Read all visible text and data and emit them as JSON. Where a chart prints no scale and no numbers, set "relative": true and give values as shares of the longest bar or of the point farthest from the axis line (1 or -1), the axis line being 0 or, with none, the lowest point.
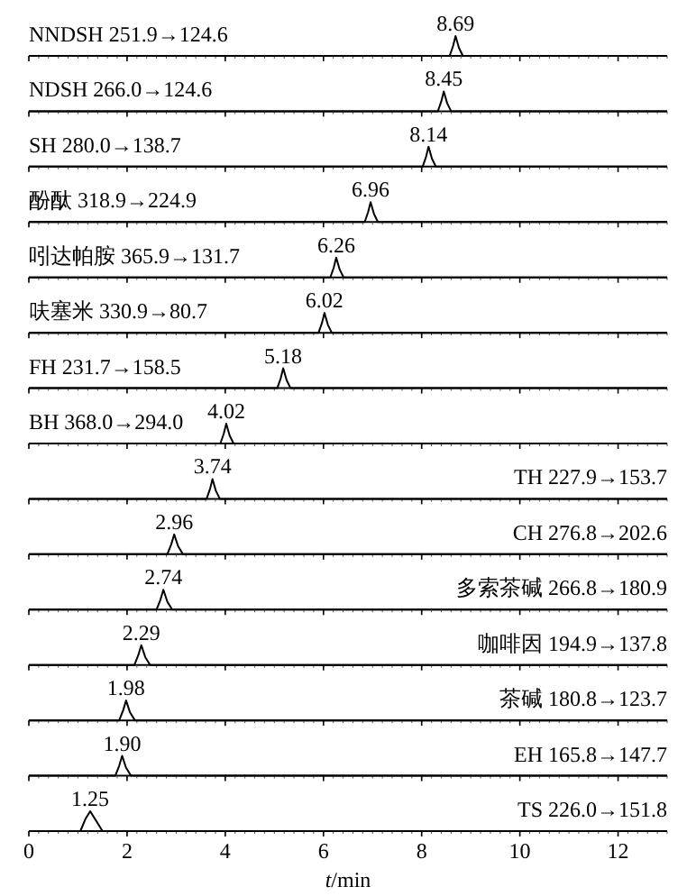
{
  "chart_data": [
    {
      "type": "line",
      "title": "NNDSH 251.9→124.6",
      "relative": true,
      "tick_labels": false,
      "xlim": [
        0,
        13
      ],
      "xticks": [
        {
          "value": 0,
          "label": null
        },
        {
          "value": 2,
          "label": null
        },
        {
          "value": 4,
          "label": null
        },
        {
          "value": 6,
          "label": null
        },
        {
          "value": 8,
          "label": null
        },
        {
          "value": 10,
          "label": null
        },
        {
          "value": 12,
          "label": null
        }
      ],
      "series": [
        {
          "color": "#000000",
          "x": [
            0,
            8.57,
            8.64,
            8.69,
            8.76,
            8.84,
            13
          ],
          "values": [
            0,
            0,
            0.5,
            1,
            0.4,
            0,
            0
          ]
        }
      ],
      "annotations": [
        {
          "text": "8.69",
          "x": 8.69,
          "y": 1
        }
      ]
    },
    {
      "type": "line",
      "title": "NDSH 266.0→124.6",
      "relative": true,
      "tick_labels": false,
      "xlim": [
        0,
        13
      ],
      "xticks": [
        {
          "value": 0,
          "label": null
        },
        {
          "value": 2,
          "label": null
        },
        {
          "value": 4,
          "label": null
        },
        {
          "value": 6,
          "label": null
        },
        {
          "value": 8,
          "label": null
        },
        {
          "value": 10,
          "label": null
        },
        {
          "value": 12,
          "label": null
        }
      ],
      "series": [
        {
          "color": "#000000",
          "x": [
            0,
            8.33,
            8.4,
            8.45,
            8.52,
            8.6,
            13
          ],
          "values": [
            0,
            0,
            0.5,
            1,
            0.4,
            0,
            0
          ]
        }
      ],
      "annotations": [
        {
          "text": "8.45",
          "x": 8.45,
          "y": 1
        }
      ]
    },
    {
      "type": "line",
      "title": "SH 280.0→138.7",
      "relative": true,
      "tick_labels": false,
      "xlim": [
        0,
        13
      ],
      "xticks": [
        {
          "value": 0,
          "label": null
        },
        {
          "value": 2,
          "label": null
        },
        {
          "value": 4,
          "label": null
        },
        {
          "value": 6,
          "label": null
        },
        {
          "value": 8,
          "label": null
        },
        {
          "value": 10,
          "label": null
        },
        {
          "value": 12,
          "label": null
        }
      ],
      "series": [
        {
          "color": "#000000",
          "x": [
            0,
            8.02,
            8.09,
            8.14,
            8.21,
            8.29,
            13
          ],
          "values": [
            0,
            0,
            0.5,
            1,
            0.4,
            0,
            0
          ]
        }
      ],
      "annotations": [
        {
          "text": "8.14",
          "x": 8.14,
          "y": 1
        }
      ]
    },
    {
      "type": "line",
      "title": "酚酞 318.9→224.9",
      "relative": true,
      "tick_labels": false,
      "xlim": [
        0,
        13
      ],
      "xticks": [
        {
          "value": 0,
          "label": null
        },
        {
          "value": 2,
          "label": null
        },
        {
          "value": 4,
          "label": null
        },
        {
          "value": 6,
          "label": null
        },
        {
          "value": 8,
          "label": null
        },
        {
          "value": 10,
          "label": null
        },
        {
          "value": 12,
          "label": null
        }
      ],
      "series": [
        {
          "color": "#000000",
          "x": [
            0,
            6.84,
            6.91,
            6.96,
            7.03,
            7.11,
            13
          ],
          "values": [
            0,
            0,
            0.5,
            1,
            0.4,
            0,
            0
          ]
        }
      ],
      "annotations": [
        {
          "text": "6.96",
          "x": 6.96,
          "y": 1
        }
      ]
    },
    {
      "type": "line",
      "title": "吲达帕胺 365.9→131.7",
      "relative": true,
      "tick_labels": false,
      "xlim": [
        0,
        13
      ],
      "xticks": [
        {
          "value": 0,
          "label": null
        },
        {
          "value": 2,
          "label": null
        },
        {
          "value": 4,
          "label": null
        },
        {
          "value": 6,
          "label": null
        },
        {
          "value": 8,
          "label": null
        },
        {
          "value": 10,
          "label": null
        },
        {
          "value": 12,
          "label": null
        }
      ],
      "series": [
        {
          "color": "#000000",
          "x": [
            0,
            6.14,
            6.21,
            6.26,
            6.33,
            6.41,
            13
          ],
          "values": [
            0,
            0,
            0.5,
            1,
            0.4,
            0,
            0
          ]
        }
      ],
      "annotations": [
        {
          "text": "6.26",
          "x": 6.26,
          "y": 1
        }
      ]
    },
    {
      "type": "line",
      "title": "呋塞米 330.9→80.7",
      "relative": true,
      "tick_labels": false,
      "xlim": [
        0,
        13
      ],
      "xticks": [
        {
          "value": 0,
          "label": null
        },
        {
          "value": 2,
          "label": null
        },
        {
          "value": 4,
          "label": null
        },
        {
          "value": 6,
          "label": null
        },
        {
          "value": 8,
          "label": null
        },
        {
          "value": 10,
          "label": null
        },
        {
          "value": 12,
          "label": null
        }
      ],
      "series": [
        {
          "color": "#000000",
          "x": [
            0,
            5.9,
            5.97,
            6.02,
            6.09,
            6.17,
            13
          ],
          "values": [
            0,
            0,
            0.5,
            1,
            0.4,
            0,
            0
          ]
        }
      ],
      "annotations": [
        {
          "text": "6.02",
          "x": 6.02,
          "y": 1
        }
      ]
    },
    {
      "type": "line",
      "title": "FH 231.7→158.5",
      "relative": true,
      "tick_labels": false,
      "xlim": [
        0,
        13
      ],
      "xticks": [
        {
          "value": 0,
          "label": null
        },
        {
          "value": 2,
          "label": null
        },
        {
          "value": 4,
          "label": null
        },
        {
          "value": 6,
          "label": null
        },
        {
          "value": 8,
          "label": null
        },
        {
          "value": 10,
          "label": null
        },
        {
          "value": 12,
          "label": null
        }
      ],
      "series": [
        {
          "color": "#000000",
          "x": [
            0,
            5.06,
            5.13,
            5.18,
            5.25,
            5.33,
            13
          ],
          "values": [
            0,
            0,
            0.5,
            1,
            0.4,
            0,
            0
          ]
        }
      ],
      "annotations": [
        {
          "text": "5.18",
          "x": 5.18,
          "y": 1
        }
      ]
    },
    {
      "type": "line",
      "title": "BH 368.0→294.0",
      "relative": true,
      "tick_labels": false,
      "xlim": [
        0,
        13
      ],
      "xticks": [
        {
          "value": 0,
          "label": null
        },
        {
          "value": 2,
          "label": null
        },
        {
          "value": 4,
          "label": null
        },
        {
          "value": 6,
          "label": null
        },
        {
          "value": 8,
          "label": null
        },
        {
          "value": 10,
          "label": null
        },
        {
          "value": 12,
          "label": null
        }
      ],
      "series": [
        {
          "color": "#000000",
          "x": [
            0,
            3.9,
            3.97,
            4.02,
            4.09,
            4.17,
            13
          ],
          "values": [
            0,
            0,
            0.5,
            1,
            0.4,
            0,
            0
          ]
        }
      ],
      "annotations": [
        {
          "text": "4.02",
          "x": 4.02,
          "y": 1
        }
      ]
    },
    {
      "type": "line",
      "title": "TH 227.9→153.7",
      "relative": true,
      "tick_labels": false,
      "xlim": [
        0,
        13
      ],
      "xticks": [
        {
          "value": 0,
          "label": null
        },
        {
          "value": 2,
          "label": null
        },
        {
          "value": 4,
          "label": null
        },
        {
          "value": 6,
          "label": null
        },
        {
          "value": 8,
          "label": null
        },
        {
          "value": 10,
          "label": null
        },
        {
          "value": 12,
          "label": null
        }
      ],
      "series": [
        {
          "color": "#000000",
          "x": [
            0,
            3.62,
            3.69,
            3.74,
            3.81,
            3.89,
            13
          ],
          "values": [
            0,
            0,
            0.5,
            1,
            0.4,
            0,
            0
          ]
        }
      ],
      "annotations": [
        {
          "text": "3.74",
          "x": 3.74,
          "y": 1
        }
      ]
    },
    {
      "type": "line",
      "title": "CH 276.8→202.6",
      "relative": true,
      "tick_labels": false,
      "xlim": [
        0,
        13
      ],
      "xticks": [
        {
          "value": 0,
          "label": null
        },
        {
          "value": 2,
          "label": null
        },
        {
          "value": 4,
          "label": null
        },
        {
          "value": 6,
          "label": null
        },
        {
          "value": 8,
          "label": null
        },
        {
          "value": 10,
          "label": null
        },
        {
          "value": 12,
          "label": null
        }
      ],
      "series": [
        {
          "color": "#000000",
          "x": [
            0,
            2.82,
            2.9,
            2.96,
            3.04,
            3.14,
            13
          ],
          "values": [
            0,
            0,
            0.5,
            1,
            0.4,
            0,
            0
          ]
        }
      ],
      "annotations": [
        {
          "text": "2.96",
          "x": 2.96,
          "y": 1
        }
      ]
    },
    {
      "type": "line",
      "title": "多索茶碱 266.8→180.9",
      "relative": true,
      "tick_labels": false,
      "xlim": [
        0,
        13
      ],
      "xticks": [
        {
          "value": 0,
          "label": null
        },
        {
          "value": 2,
          "label": null
        },
        {
          "value": 4,
          "label": null
        },
        {
          "value": 6,
          "label": null
        },
        {
          "value": 8,
          "label": null
        },
        {
          "value": 10,
          "label": null
        },
        {
          "value": 12,
          "label": null
        }
      ],
      "series": [
        {
          "color": "#000000",
          "x": [
            0,
            2.6,
            2.68,
            2.74,
            2.82,
            2.92,
            13
          ],
          "values": [
            0,
            0,
            0.5,
            1,
            0.4,
            0,
            0
          ]
        }
      ],
      "annotations": [
        {
          "text": "2.74",
          "x": 2.74,
          "y": 1
        }
      ]
    },
    {
      "type": "line",
      "title": "咖啡因 194.9→137.8",
      "relative": true,
      "tick_labels": false,
      "xlim": [
        0,
        13
      ],
      "xticks": [
        {
          "value": 0,
          "label": null
        },
        {
          "value": 2,
          "label": null
        },
        {
          "value": 4,
          "label": null
        },
        {
          "value": 6,
          "label": null
        },
        {
          "value": 8,
          "label": null
        },
        {
          "value": 10,
          "label": null
        },
        {
          "value": 12,
          "label": null
        }
      ],
      "series": [
        {
          "color": "#000000",
          "x": [
            0,
            2.15,
            2.23,
            2.29,
            2.37,
            2.47,
            13
          ],
          "values": [
            0,
            0,
            0.5,
            1,
            0.4,
            0,
            0
          ]
        }
      ],
      "annotations": [
        {
          "text": "2.29",
          "x": 2.29,
          "y": 1
        }
      ]
    },
    {
      "type": "line",
      "title": "茶碱 180.8→123.7",
      "relative": true,
      "tick_labels": false,
      "xlim": [
        0,
        13
      ],
      "xticks": [
        {
          "value": 0,
          "label": null
        },
        {
          "value": 2,
          "label": null
        },
        {
          "value": 4,
          "label": null
        },
        {
          "value": 6,
          "label": null
        },
        {
          "value": 8,
          "label": null
        },
        {
          "value": 10,
          "label": null
        },
        {
          "value": 12,
          "label": null
        }
      ],
      "series": [
        {
          "color": "#000000",
          "x": [
            0,
            1.84,
            1.92,
            1.98,
            2.06,
            2.16,
            13
          ],
          "values": [
            0,
            0,
            0.5,
            1,
            0.4,
            0,
            0
          ]
        }
      ],
      "annotations": [
        {
          "text": "1.98",
          "x": 1.98,
          "y": 1
        }
      ]
    },
    {
      "type": "line",
      "title": "EH 165.8→147.7",
      "relative": true,
      "tick_labels": false,
      "xlim": [
        0,
        13
      ],
      "xticks": [
        {
          "value": 0,
          "label": null
        },
        {
          "value": 2,
          "label": null
        },
        {
          "value": 4,
          "label": null
        },
        {
          "value": 6,
          "label": null
        },
        {
          "value": 8,
          "label": null
        },
        {
          "value": 10,
          "label": null
        },
        {
          "value": 12,
          "label": null
        }
      ],
      "series": [
        {
          "color": "#000000",
          "x": [
            0,
            1.76,
            1.84,
            1.9,
            1.98,
            2.08,
            13
          ],
          "values": [
            0,
            0,
            0.5,
            1,
            0.4,
            0,
            0
          ]
        }
      ],
      "annotations": [
        {
          "text": "1.90",
          "x": 1.9,
          "y": 1
        }
      ]
    },
    {
      "type": "line",
      "title": "TS 226.0→151.8",
      "xlabel": "t/min",
      "relative": true,
      "tick_labels": "x",
      "xlim": [
        0,
        13
      ],
      "xticks": [
        0,
        2,
        4,
        6,
        8,
        10,
        12
      ],
      "series": [
        {
          "color": "#000000",
          "x": [
            0,
            1.05,
            1.15,
            1.25,
            1.35,
            1.5,
            13
          ],
          "values": [
            0,
            0,
            0.6,
            1,
            0.6,
            0,
            0
          ]
        }
      ],
      "annotations": [
        {
          "text": "1.25",
          "x": 1.25,
          "y": 1
        }
      ]
    }
  ]
}
